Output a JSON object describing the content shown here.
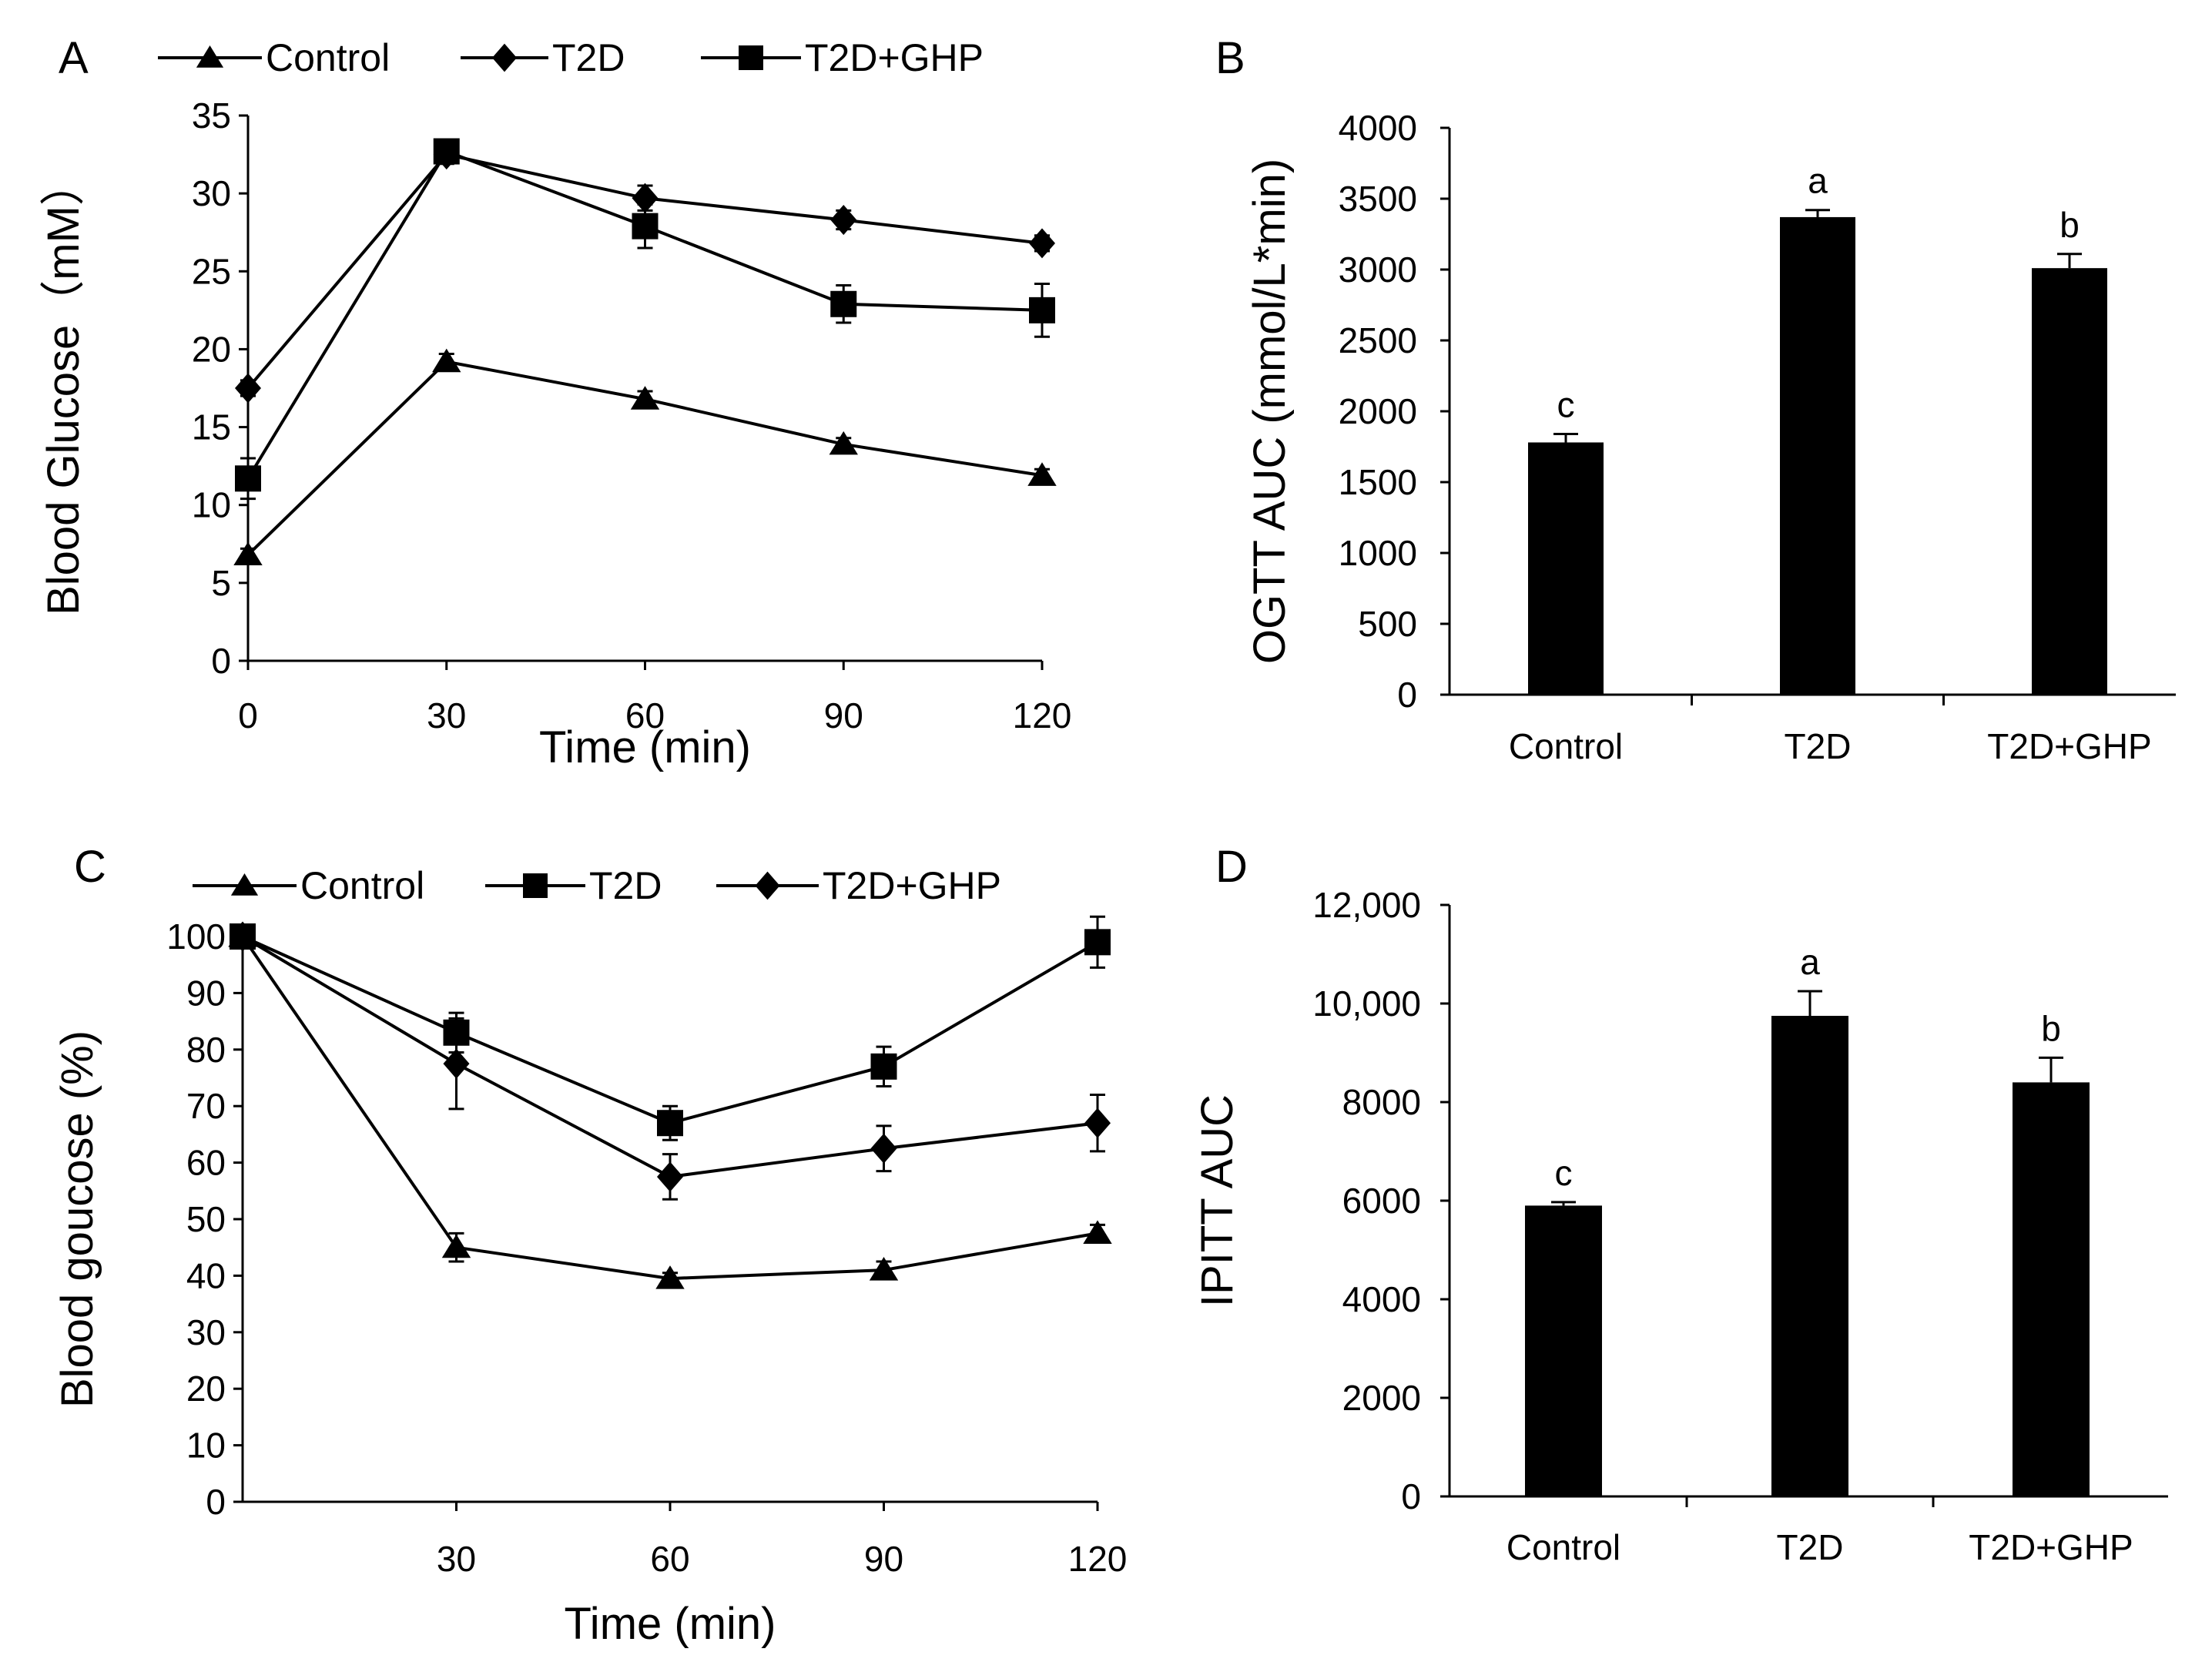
{
  "figure": {
    "panels": [
      "A",
      "B",
      "C",
      "D"
    ]
  },
  "chart_data": [
    {
      "id": "A",
      "label": "A",
      "type": "line",
      "title": "",
      "xlabel": "Time (min)",
      "ylabel": "Blood Glucose（mM）",
      "x": [
        0,
        30,
        60,
        90,
        120
      ],
      "x_ticks": [
        0,
        30,
        60,
        90,
        120
      ],
      "ylim": [
        0,
        35
      ],
      "y_ticks": [
        0,
        5,
        10,
        15,
        20,
        25,
        30,
        35
      ],
      "grid": false,
      "legend_position": "top",
      "series": [
        {
          "name": "Control",
          "marker": "triangle",
          "values": [
            6.8,
            19.2,
            16.8,
            13.9,
            11.9
          ],
          "errors": [
            0.4,
            0.5,
            0.5,
            0.4,
            0.4
          ]
        },
        {
          "name": "T2D",
          "marker": "diamond",
          "values": [
            17.5,
            32.5,
            29.7,
            28.3,
            26.8
          ],
          "errors": [
            0.5,
            0.6,
            0.8,
            0.6,
            0.5
          ]
        },
        {
          "name": "T2D+GHP",
          "marker": "square",
          "values": [
            11.7,
            32.7,
            27.9,
            22.9,
            22.5
          ],
          "errors": [
            1.3,
            0.7,
            1.4,
            1.2,
            1.7
          ]
        }
      ]
    },
    {
      "id": "B",
      "label": "B",
      "type": "bar",
      "title": "",
      "xlabel": "",
      "ylabel": "OGTT AUC (mmol/L*min)",
      "categories": [
        "Control",
        "T2D",
        "T2D+GHP"
      ],
      "values": [
        1780,
        3370,
        3010
      ],
      "errors": [
        60,
        50,
        100
      ],
      "significance": [
        "c",
        "a",
        "b"
      ],
      "ylim": [
        0,
        4000
      ],
      "y_ticks": [
        0,
        500,
        1000,
        1500,
        2000,
        2500,
        3000,
        3500,
        4000
      ],
      "y_tick_labels": [
        "0",
        "500",
        "1000",
        "1500",
        "2000",
        "2500",
        "3000",
        "3500",
        "4000"
      ],
      "grid": false
    },
    {
      "id": "C",
      "label": "C",
      "type": "line",
      "title": "",
      "xlabel": "Time (min)",
      "ylabel": "Blood goucose (%)",
      "x": [
        0,
        30,
        60,
        90,
        120
      ],
      "x_ticks": [
        30,
        60,
        90,
        120
      ],
      "ylim": [
        0,
        100
      ],
      "y_ticks": [
        0,
        10,
        20,
        30,
        40,
        50,
        60,
        70,
        80,
        90,
        100
      ],
      "grid": false,
      "legend_position": "top",
      "series": [
        {
          "name": "Control",
          "marker": "triangle",
          "values": [
            100,
            45,
            39.5,
            41,
            47.5
          ],
          "errors": [
            0,
            2.5,
            1,
            1.5,
            1.5
          ]
        },
        {
          "name": "T2D",
          "marker": "square",
          "values": [
            100,
            83,
            67,
            77,
            99
          ],
          "errors": [
            0,
            3.5,
            3,
            3.5,
            4.5
          ]
        },
        {
          "name": "T2D+GHP",
          "marker": "diamond",
          "values": [
            100,
            77.5,
            57.5,
            62.5,
            67
          ],
          "errors": [
            0,
            8,
            4,
            4,
            5
          ]
        }
      ]
    },
    {
      "id": "D",
      "label": "D",
      "type": "bar",
      "title": "",
      "xlabel": "",
      "ylabel": "IPITT AUC",
      "categories": [
        "Control",
        "T2D",
        "T2D+GHP"
      ],
      "values": [
        5900,
        9750,
        8400
      ],
      "errors": [
        70,
        500,
        500
      ],
      "significance": [
        "c",
        "a",
        "b"
      ],
      "ylim": [
        0,
        12000
      ],
      "y_ticks": [
        0,
        2000,
        4000,
        6000,
        8000,
        10000,
        12000
      ],
      "y_tick_labels": [
        "0",
        "2000",
        "4000",
        "6000",
        "8000",
        "10,000",
        "12,000"
      ],
      "grid": false
    }
  ]
}
